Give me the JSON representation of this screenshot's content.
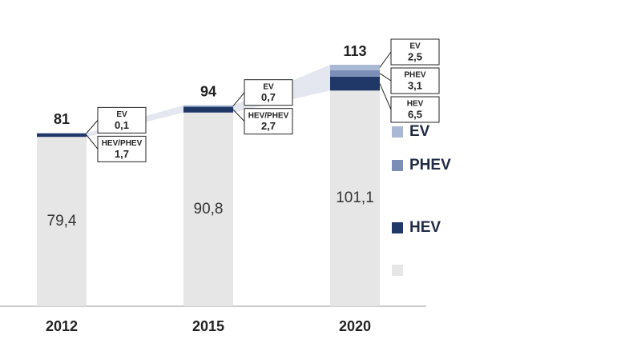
{
  "chart_data": {
    "type": "stacked_bar",
    "categories": [
      "2012",
      "2015",
      "2020"
    ],
    "totals": [
      81,
      94,
      113
    ],
    "series": [
      {
        "color": "#e6e6e6",
        "values": [
          79.4,
          90.8,
          101.1
        ],
        "value_labels": [
          "79,4",
          "90,8",
          "101,1"
        ]
      },
      {
        "name": "HEV",
        "color": "#1f3868",
        "values": [
          1.7,
          2.7,
          6.5
        ],
        "value_labels": [
          "1,7",
          "2,7",
          "6,5"
        ],
        "box_labels": [
          "HEV/PHEV",
          "HEV/PHEV",
          "HEV"
        ]
      },
      {
        "name": "PHEV",
        "color": "#7b8fb6",
        "values": [
          null,
          null,
          3.1
        ],
        "value_labels": [
          null,
          null,
          "3,1"
        ]
      },
      {
        "name": "EV",
        "color": "#a9b9d4",
        "values": [
          0.1,
          0.7,
          2.5
        ],
        "value_labels": [
          "0,1",
          "0,7",
          "2,5"
        ]
      }
    ]
  }
}
